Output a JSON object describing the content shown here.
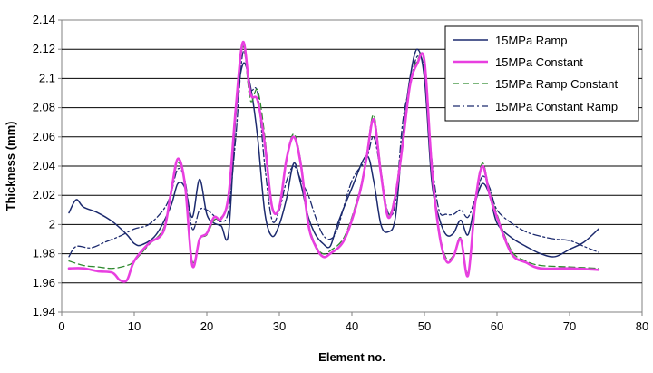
{
  "chart_data": {
    "type": "line",
    "title": "",
    "xlabel": "Element no.",
    "ylabel": "Thickness (mm)",
    "xlim": [
      0,
      80
    ],
    "ylim": [
      1.94,
      2.14
    ],
    "x_ticks": [
      "0",
      "10",
      "20",
      "30",
      "40",
      "50",
      "60",
      "70",
      "80"
    ],
    "y_ticks": [
      "1.94",
      "1.96",
      "1.98",
      "2",
      "2.02",
      "2.04",
      "2.06",
      "2.08",
      "2.1",
      "2.12",
      "2.14"
    ],
    "grid": "horizontal",
    "legend_position": "top-right",
    "series": [
      {
        "name": "15MPa Ramp",
        "color": "#1c2a6e",
        "style": "solid",
        "points": [
          [
            1,
            2.008
          ],
          [
            2,
            2.017
          ],
          [
            3,
            2.012
          ],
          [
            5,
            2.008
          ],
          [
            7,
            2.002
          ],
          [
            9,
            1.993
          ],
          [
            10,
            1.987
          ],
          [
            11,
            1.986
          ],
          [
            13,
            1.993
          ],
          [
            15,
            2.012
          ],
          [
            16,
            2.028
          ],
          [
            17,
            2.025
          ],
          [
            18,
            2.005
          ],
          [
            19,
            2.031
          ],
          [
            20,
            2.007
          ],
          [
            21,
            2.001
          ],
          [
            22,
            1.999
          ],
          [
            23,
            1.994
          ],
          [
            24,
            2.075
          ],
          [
            25,
            2.11
          ],
          [
            26,
            2.095
          ],
          [
            27,
            2.06
          ],
          [
            28,
            2.008
          ],
          [
            29,
            1.992
          ],
          [
            30,
            2.0
          ],
          [
            31,
            2.018
          ],
          [
            32,
            2.042
          ],
          [
            33,
            2.027
          ],
          [
            34,
            2.005
          ],
          [
            35,
            1.993
          ],
          [
            36,
            1.987
          ],
          [
            37,
            1.985
          ],
          [
            38,
            2.0
          ],
          [
            40,
            2.025
          ],
          [
            42,
            2.047
          ],
          [
            43,
            2.03
          ],
          [
            44,
            2.0
          ],
          [
            45,
            1.995
          ],
          [
            46,
            2.005
          ],
          [
            47,
            2.06
          ],
          [
            48,
            2.1
          ],
          [
            49,
            2.12
          ],
          [
            50,
            2.1
          ],
          [
            51,
            2.03
          ],
          [
            52,
            2.005
          ],
          [
            53,
            1.993
          ],
          [
            54,
            1.994
          ],
          [
            55,
            2.003
          ],
          [
            56,
            1.993
          ],
          [
            57,
            2.015
          ],
          [
            58,
            2.028
          ],
          [
            59,
            2.02
          ],
          [
            60,
            2.001
          ],
          [
            62,
            1.991
          ],
          [
            64,
            1.985
          ],
          [
            66,
            1.98
          ],
          [
            68,
            1.978
          ],
          [
            70,
            1.983
          ],
          [
            72,
            1.988
          ],
          [
            74,
            1.997
          ]
        ]
      },
      {
        "name": "15MPa Constant",
        "color": "#e83fe0",
        "style": "solid",
        "points": [
          [
            1,
            1.97
          ],
          [
            3,
            1.97
          ],
          [
            5,
            1.968
          ],
          [
            7,
            1.967
          ],
          [
            8,
            1.962
          ],
          [
            9,
            1.962
          ],
          [
            10,
            1.975
          ],
          [
            12,
            1.987
          ],
          [
            14,
            1.995
          ],
          [
            15,
            2.02
          ],
          [
            16,
            2.045
          ],
          [
            17,
            2.027
          ],
          [
            18,
            1.972
          ],
          [
            19,
            1.99
          ],
          [
            20,
            1.994
          ],
          [
            21,
            2.005
          ],
          [
            22,
            2.004
          ],
          [
            23,
            2.02
          ],
          [
            24,
            2.08
          ],
          [
            25,
            2.125
          ],
          [
            26,
            2.09
          ],
          [
            27,
            2.085
          ],
          [
            28,
            2.055
          ],
          [
            29,
            2.012
          ],
          [
            30,
            2.012
          ],
          [
            31,
            2.045
          ],
          [
            32,
            2.06
          ],
          [
            33,
            2.04
          ],
          [
            34,
            2.0
          ],
          [
            35,
            1.985
          ],
          [
            36,
            1.978
          ],
          [
            37,
            1.98
          ],
          [
            39,
            1.99
          ],
          [
            41,
            2.02
          ],
          [
            42,
            2.045
          ],
          [
            43,
            2.072
          ],
          [
            44,
            2.035
          ],
          [
            45,
            2.005
          ],
          [
            46,
            2.02
          ],
          [
            47,
            2.055
          ],
          [
            48,
            2.095
          ],
          [
            49,
            2.11
          ],
          [
            50,
            2.112
          ],
          [
            51,
            2.04
          ],
          [
            52,
            1.995
          ],
          [
            53,
            1.975
          ],
          [
            54,
            1.978
          ],
          [
            55,
            1.99
          ],
          [
            56,
            1.965
          ],
          [
            57,
            2.015
          ],
          [
            58,
            2.04
          ],
          [
            59,
            2.02
          ],
          [
            60,
            2.005
          ],
          [
            62,
            1.98
          ],
          [
            64,
            1.974
          ],
          [
            66,
            1.97
          ],
          [
            70,
            1.97
          ],
          [
            74,
            1.969
          ]
        ]
      },
      {
        "name": "15MPa Ramp Constant",
        "color": "#2f8a2f",
        "style": "dashed",
        "points": [
          [
            1,
            1.975
          ],
          [
            3,
            1.972
          ],
          [
            5,
            1.971
          ],
          [
            7,
            1.97
          ],
          [
            9,
            1.972
          ],
          [
            10,
            1.975
          ],
          [
            12,
            1.986
          ],
          [
            14,
            1.997
          ],
          [
            15,
            2.02
          ],
          [
            16,
            2.042
          ],
          [
            17,
            2.027
          ],
          [
            18,
            1.975
          ],
          [
            19,
            1.99
          ],
          [
            20,
            1.993
          ],
          [
            21,
            2.003
          ],
          [
            22,
            2.005
          ],
          [
            23,
            2.018
          ],
          [
            24,
            2.08
          ],
          [
            25,
            2.122
          ],
          [
            26,
            2.085
          ],
          [
            27,
            2.092
          ],
          [
            28,
            2.06
          ],
          [
            29,
            2.012
          ],
          [
            30,
            2.012
          ],
          [
            31,
            2.045
          ],
          [
            32,
            2.062
          ],
          [
            33,
            2.042
          ],
          [
            34,
            2.002
          ],
          [
            35,
            1.986
          ],
          [
            36,
            1.98
          ],
          [
            37,
            1.982
          ],
          [
            39,
            1.992
          ],
          [
            41,
            2.022
          ],
          [
            42,
            2.047
          ],
          [
            43,
            2.075
          ],
          [
            44,
            2.038
          ],
          [
            45,
            2.007
          ],
          [
            46,
            2.022
          ],
          [
            47,
            2.058
          ],
          [
            48,
            2.095
          ],
          [
            49,
            2.112
          ],
          [
            50,
            2.112
          ],
          [
            51,
            2.042
          ],
          [
            52,
            1.997
          ],
          [
            53,
            1.977
          ],
          [
            54,
            1.979
          ],
          [
            55,
            1.991
          ],
          [
            56,
            1.967
          ],
          [
            57,
            2.016
          ],
          [
            58,
            2.042
          ],
          [
            59,
            2.022
          ],
          [
            60,
            2.007
          ],
          [
            62,
            1.982
          ],
          [
            64,
            1.975
          ],
          [
            66,
            1.972
          ],
          [
            70,
            1.971
          ],
          [
            74,
            1.97
          ]
        ]
      },
      {
        "name": "15MPa Constant Ramp",
        "color": "#1c2a6e",
        "style": "dashdot",
        "points": [
          [
            1,
            1.978
          ],
          [
            2,
            1.985
          ],
          [
            4,
            1.984
          ],
          [
            6,
            1.988
          ],
          [
            8,
            1.992
          ],
          [
            10,
            1.997
          ],
          [
            12,
            2.0
          ],
          [
            14,
            2.01
          ],
          [
            15,
            2.02
          ],
          [
            16,
            2.038
          ],
          [
            17,
            2.03
          ],
          [
            18,
            1.997
          ],
          [
            19,
            2.01
          ],
          [
            20,
            2.01
          ],
          [
            21,
            2.006
          ],
          [
            22,
            2.002
          ],
          [
            23,
            2.01
          ],
          [
            24,
            2.06
          ],
          [
            25,
            2.118
          ],
          [
            26,
            2.093
          ],
          [
            27,
            2.09
          ],
          [
            28,
            2.04
          ],
          [
            29,
            2.003
          ],
          [
            30,
            2.01
          ],
          [
            31,
            2.03
          ],
          [
            32,
            2.04
          ],
          [
            33,
            2.03
          ],
          [
            34,
            2.02
          ],
          [
            35,
            2.005
          ],
          [
            36,
            1.993
          ],
          [
            37,
            1.99
          ],
          [
            38,
            1.997
          ],
          [
            40,
            2.03
          ],
          [
            42,
            2.045
          ],
          [
            43,
            2.06
          ],
          [
            44,
            2.035
          ],
          [
            45,
            2.008
          ],
          [
            46,
            2.015
          ],
          [
            47,
            2.07
          ],
          [
            48,
            2.095
          ],
          [
            49,
            2.115
          ],
          [
            50,
            2.105
          ],
          [
            51,
            2.045
          ],
          [
            52,
            2.01
          ],
          [
            53,
            2.007
          ],
          [
            54,
            2.007
          ],
          [
            55,
            2.01
          ],
          [
            56,
            2.005
          ],
          [
            57,
            2.018
          ],
          [
            58,
            2.033
          ],
          [
            59,
            2.025
          ],
          [
            60,
            2.01
          ],
          [
            62,
            2.001
          ],
          [
            64,
            1.995
          ],
          [
            66,
            1.992
          ],
          [
            68,
            1.99
          ],
          [
            70,
            1.989
          ],
          [
            72,
            1.985
          ],
          [
            74,
            1.981
          ]
        ]
      }
    ]
  }
}
